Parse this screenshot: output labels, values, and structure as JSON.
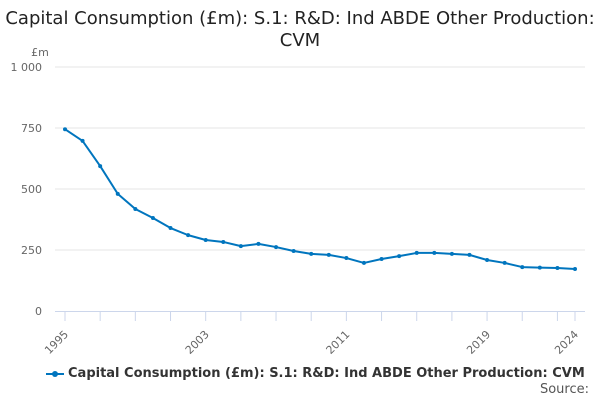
{
  "chart_data": {
    "type": "line",
    "title": "Capital Consumption (£m): S.1: R&D: Ind ABDE Other Production: CVM",
    "ylabel": "£m",
    "xlabel": "",
    "ylim": [
      0,
      1000
    ],
    "xlim": [
      1995,
      2024
    ],
    "yticks": [
      0,
      250,
      500,
      750,
      1000
    ],
    "ytick_labels": [
      "0",
      "250",
      "500",
      "750",
      "1 000"
    ],
    "xtick_labels": [
      "1995",
      "2003",
      "2011",
      "2019",
      "2024"
    ],
    "grid": true,
    "legend_placement": "bottom-left",
    "color": "#0075be",
    "series": [
      {
        "name": "Capital Consumption (£m): S.1: R&D: Ind ABDE Other Production: CVM",
        "x": [
          1995,
          1996,
          1997,
          1998,
          1999,
          2000,
          2001,
          2002,
          2003,
          2004,
          2005,
          2006,
          2007,
          2008,
          2009,
          2010,
          2011,
          2012,
          2013,
          2014,
          2015,
          2016,
          2017,
          2018,
          2019,
          2020,
          2021,
          2022,
          2023,
          2024
        ],
        "values": [
          745,
          697,
          594,
          480,
          418,
          381,
          340,
          311,
          291,
          283,
          266,
          275,
          262,
          246,
          234,
          230,
          217,
          197,
          213,
          225,
          238,
          238,
          234,
          230,
          209,
          197,
          180,
          178,
          176,
          172
        ]
      }
    ]
  },
  "source_label": "Source:"
}
